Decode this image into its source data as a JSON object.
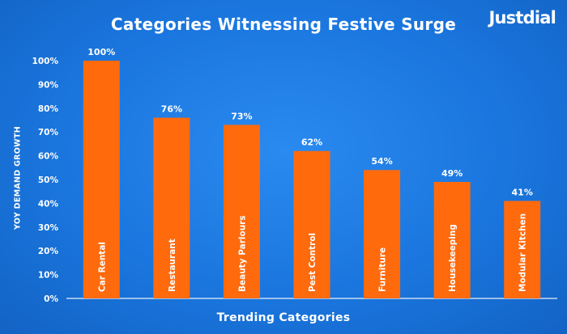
{
  "brand": {
    "name": "Justdial"
  },
  "chart_data": {
    "type": "bar",
    "title": "Categories Witnessing Festive Surge",
    "xlabel": "Trending Categories",
    "ylabel": "YOY DEMAND GROWTH",
    "categories": [
      "Car Rental",
      "Restaurant",
      "Beauty Parlours",
      "Pest Control",
      "Furniture",
      "Housekeeping",
      "Modular Kitchen"
    ],
    "values": [
      100,
      76,
      73,
      62,
      54,
      49,
      41
    ],
    "value_labels": [
      "100%",
      "76%",
      "73%",
      "62%",
      "54%",
      "49%",
      "41%"
    ],
    "ylim": [
      0,
      100
    ],
    "yticks": [
      "0%",
      "10%",
      "20%",
      "30%",
      "40%",
      "50%",
      "60%",
      "70%",
      "80%",
      "90%",
      "100%"
    ],
    "grid": false,
    "colors": {
      "bar": "#ff6a0d",
      "background": "#1a76de",
      "text": "#ffffff"
    }
  }
}
